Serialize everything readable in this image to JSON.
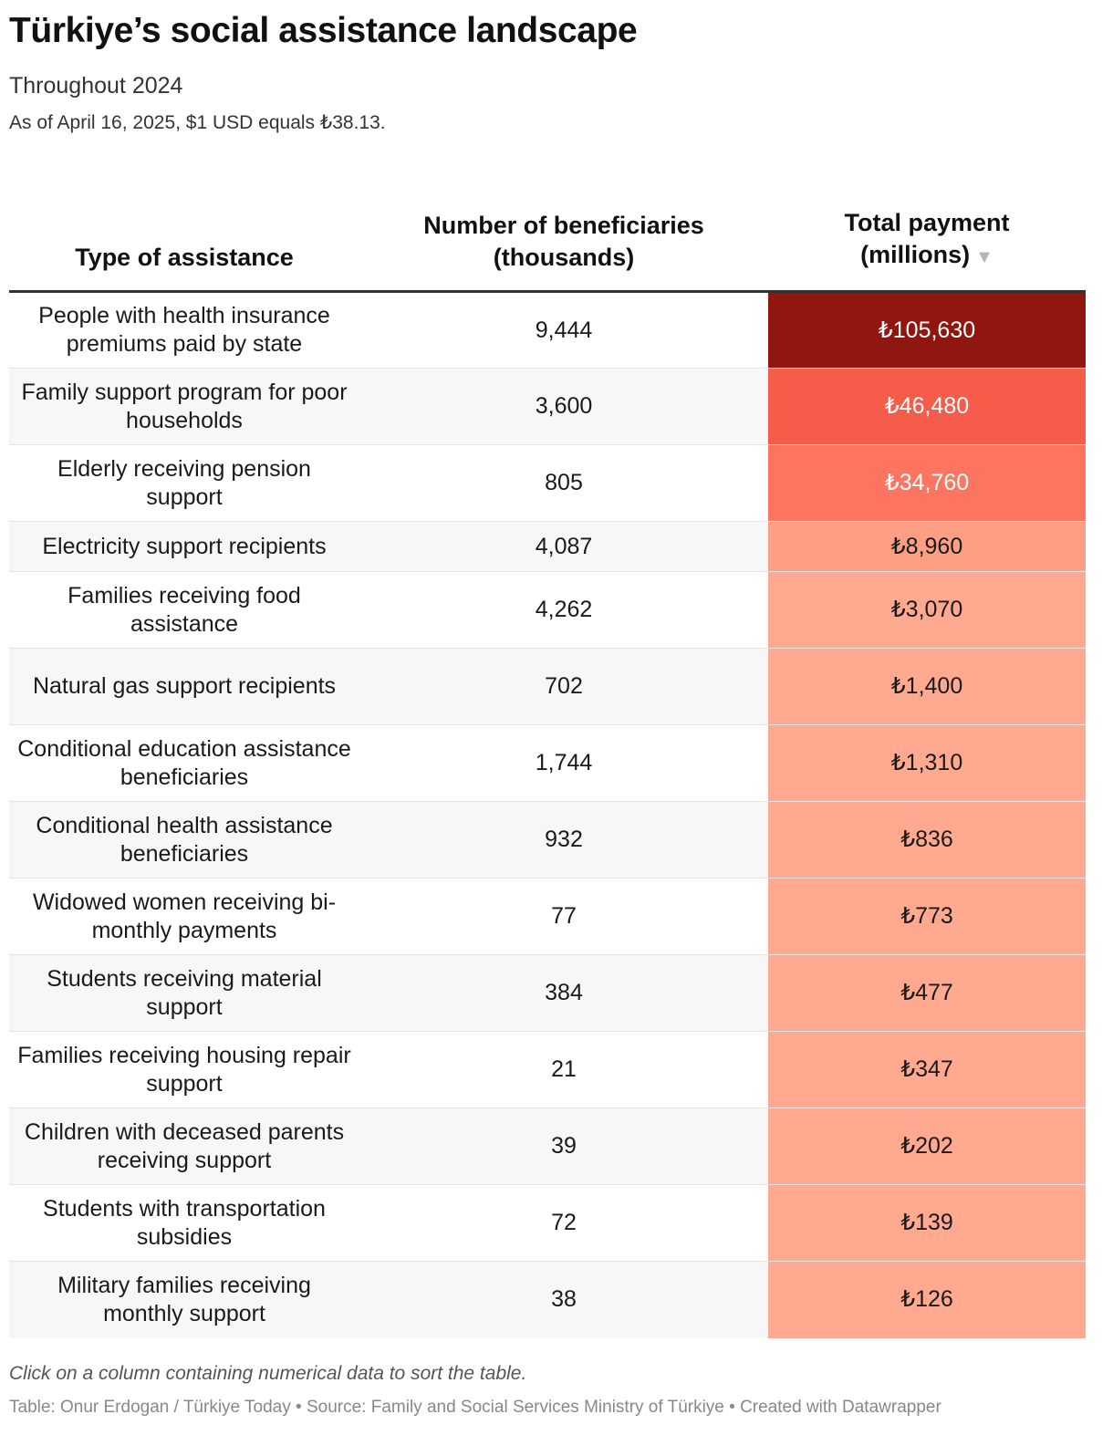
{
  "header": {
    "title": "Türkiye’s social assistance landscape",
    "subtitle": "Throughout 2024",
    "note": "As of April 16, 2025, $1 USD equals ₺38.13."
  },
  "table": {
    "columns": [
      {
        "label_line1": "",
        "label_line2": "Type of assistance"
      },
      {
        "label_line1": "Number of beneficiaries",
        "label_line2": "(thousands)"
      },
      {
        "label_line1": "Total payment",
        "label_line2": "(millions)",
        "sort_indicator": "▼"
      }
    ],
    "heat_colors": {
      "highest": "#8f1710",
      "second": "#f55c4a",
      "third": "#fd7461",
      "fourth": "#fe9f84",
      "rest": "#ffaa90"
    }
  },
  "footer": {
    "instruction": "Click on a column containing numerical data to sort the table.",
    "credit": "Table: Onur Erdogan / Türkiye Today • Source: Family and Social Services Ministry of Türkiye • Created with Datawrapper"
  },
  "chart_data": {
    "type": "table",
    "title": "Türkiye’s social assistance landscape",
    "subtitle": "Throughout 2024",
    "sorted_by": "Total payment (millions)",
    "sort_order": "descending",
    "rows": [
      {
        "type": "People with health insurance premiums paid by state",
        "beneficiaries": "9,444",
        "payment": "₺105,630",
        "payment_value": 105630
      },
      {
        "type": "Family support program for poor households",
        "beneficiaries": "3,600",
        "payment": "₺46,480",
        "payment_value": 46480
      },
      {
        "type": "Elderly receiving pension support",
        "beneficiaries": "805",
        "payment": "₺34,760",
        "payment_value": 34760
      },
      {
        "type": "Electricity support recipients",
        "beneficiaries": "4,087",
        "payment": "₺8,960",
        "payment_value": 8960
      },
      {
        "type": "Families receiving food assistance",
        "beneficiaries": "4,262",
        "payment": "₺3,070",
        "payment_value": 3070
      },
      {
        "type": "Natural gas support recipients",
        "beneficiaries": "702",
        "payment": "₺1,400",
        "payment_value": 1400
      },
      {
        "type": "Conditional education assistance beneficiaries",
        "beneficiaries": "1,744",
        "payment": "₺1,310",
        "payment_value": 1310
      },
      {
        "type": "Conditional health assistance beneficiaries",
        "beneficiaries": "932",
        "payment": "₺836",
        "payment_value": 836
      },
      {
        "type": "Widowed women receiving bi-monthly payments",
        "beneficiaries": "77",
        "payment": "₺773",
        "payment_value": 773
      },
      {
        "type": "Students receiving material support",
        "beneficiaries": "384",
        "payment": "₺477",
        "payment_value": 477
      },
      {
        "type": "Families receiving housing repair support",
        "beneficiaries": "21",
        "payment": "₺347",
        "payment_value": 347
      },
      {
        "type": "Children with deceased parents receiving support",
        "beneficiaries": "39",
        "payment": "₺202",
        "payment_value": 202
      },
      {
        "type": "Students with transportation subsidies",
        "beneficiaries": "72",
        "payment": "₺139",
        "payment_value": 139
      },
      {
        "type": "Military families receiving monthly support",
        "beneficiaries": "38",
        "payment": "₺126",
        "payment_value": 126
      }
    ]
  }
}
